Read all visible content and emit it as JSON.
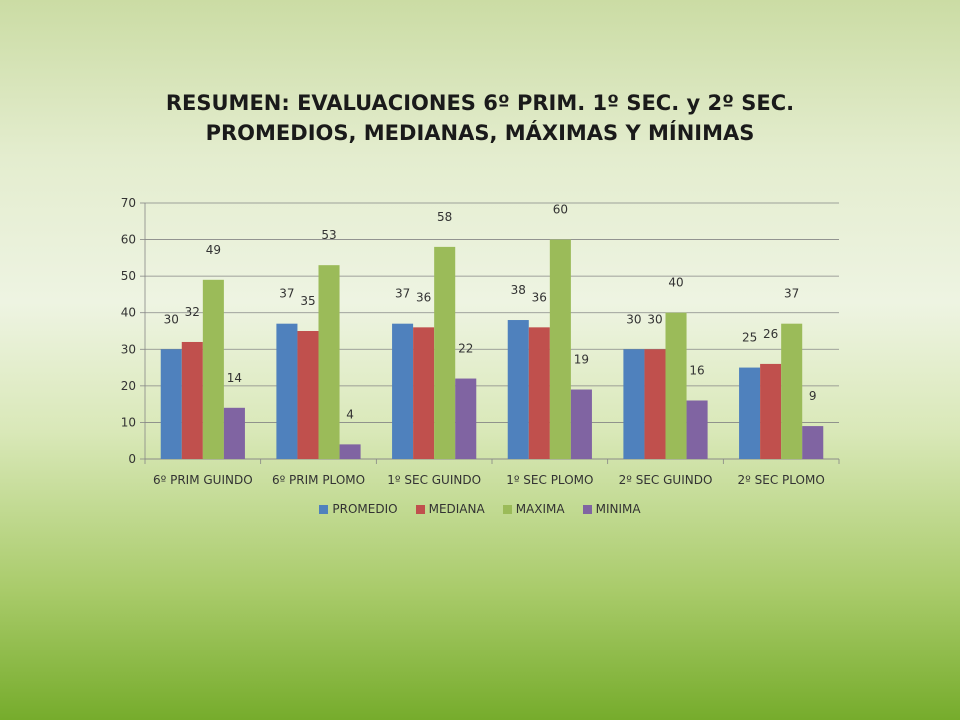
{
  "chart_data": {
    "type": "bar",
    "title_lines": [
      "RESUMEN: EVALUACIONES 6º PRIM. 1º SEC. y 2º SEC.",
      "PROMEDIOS, MEDIANAS, MÁXIMAS Y MÍNIMAS"
    ],
    "categories": [
      "6º PRIM GUINDO",
      "6º PRIM PLOMO",
      "1º SEC GUINDO",
      "1º SEC PLOMO",
      "2º SEC GUINDO",
      "2º SEC PLOMO"
    ],
    "series": [
      {
        "name": "PROMEDIO",
        "color": "#4f81bd",
        "values": [
          30,
          37,
          37,
          38,
          30,
          25
        ]
      },
      {
        "name": "MEDIANA",
        "color": "#c0504d",
        "values": [
          32,
          35,
          36,
          36,
          30,
          26
        ]
      },
      {
        "name": "MAXIMA",
        "color": "#9bbb59",
        "values": [
          49,
          53,
          58,
          60,
          40,
          37
        ]
      },
      {
        "name": "MINIMA",
        "color": "#8064a2",
        "values": [
          14,
          4,
          22,
          19,
          16,
          9
        ]
      }
    ],
    "ylim": [
      0,
      70
    ],
    "yticks": [
      0,
      10,
      20,
      30,
      40,
      50,
      60,
      70
    ],
    "grid": true,
    "legend_position": "bottom"
  }
}
